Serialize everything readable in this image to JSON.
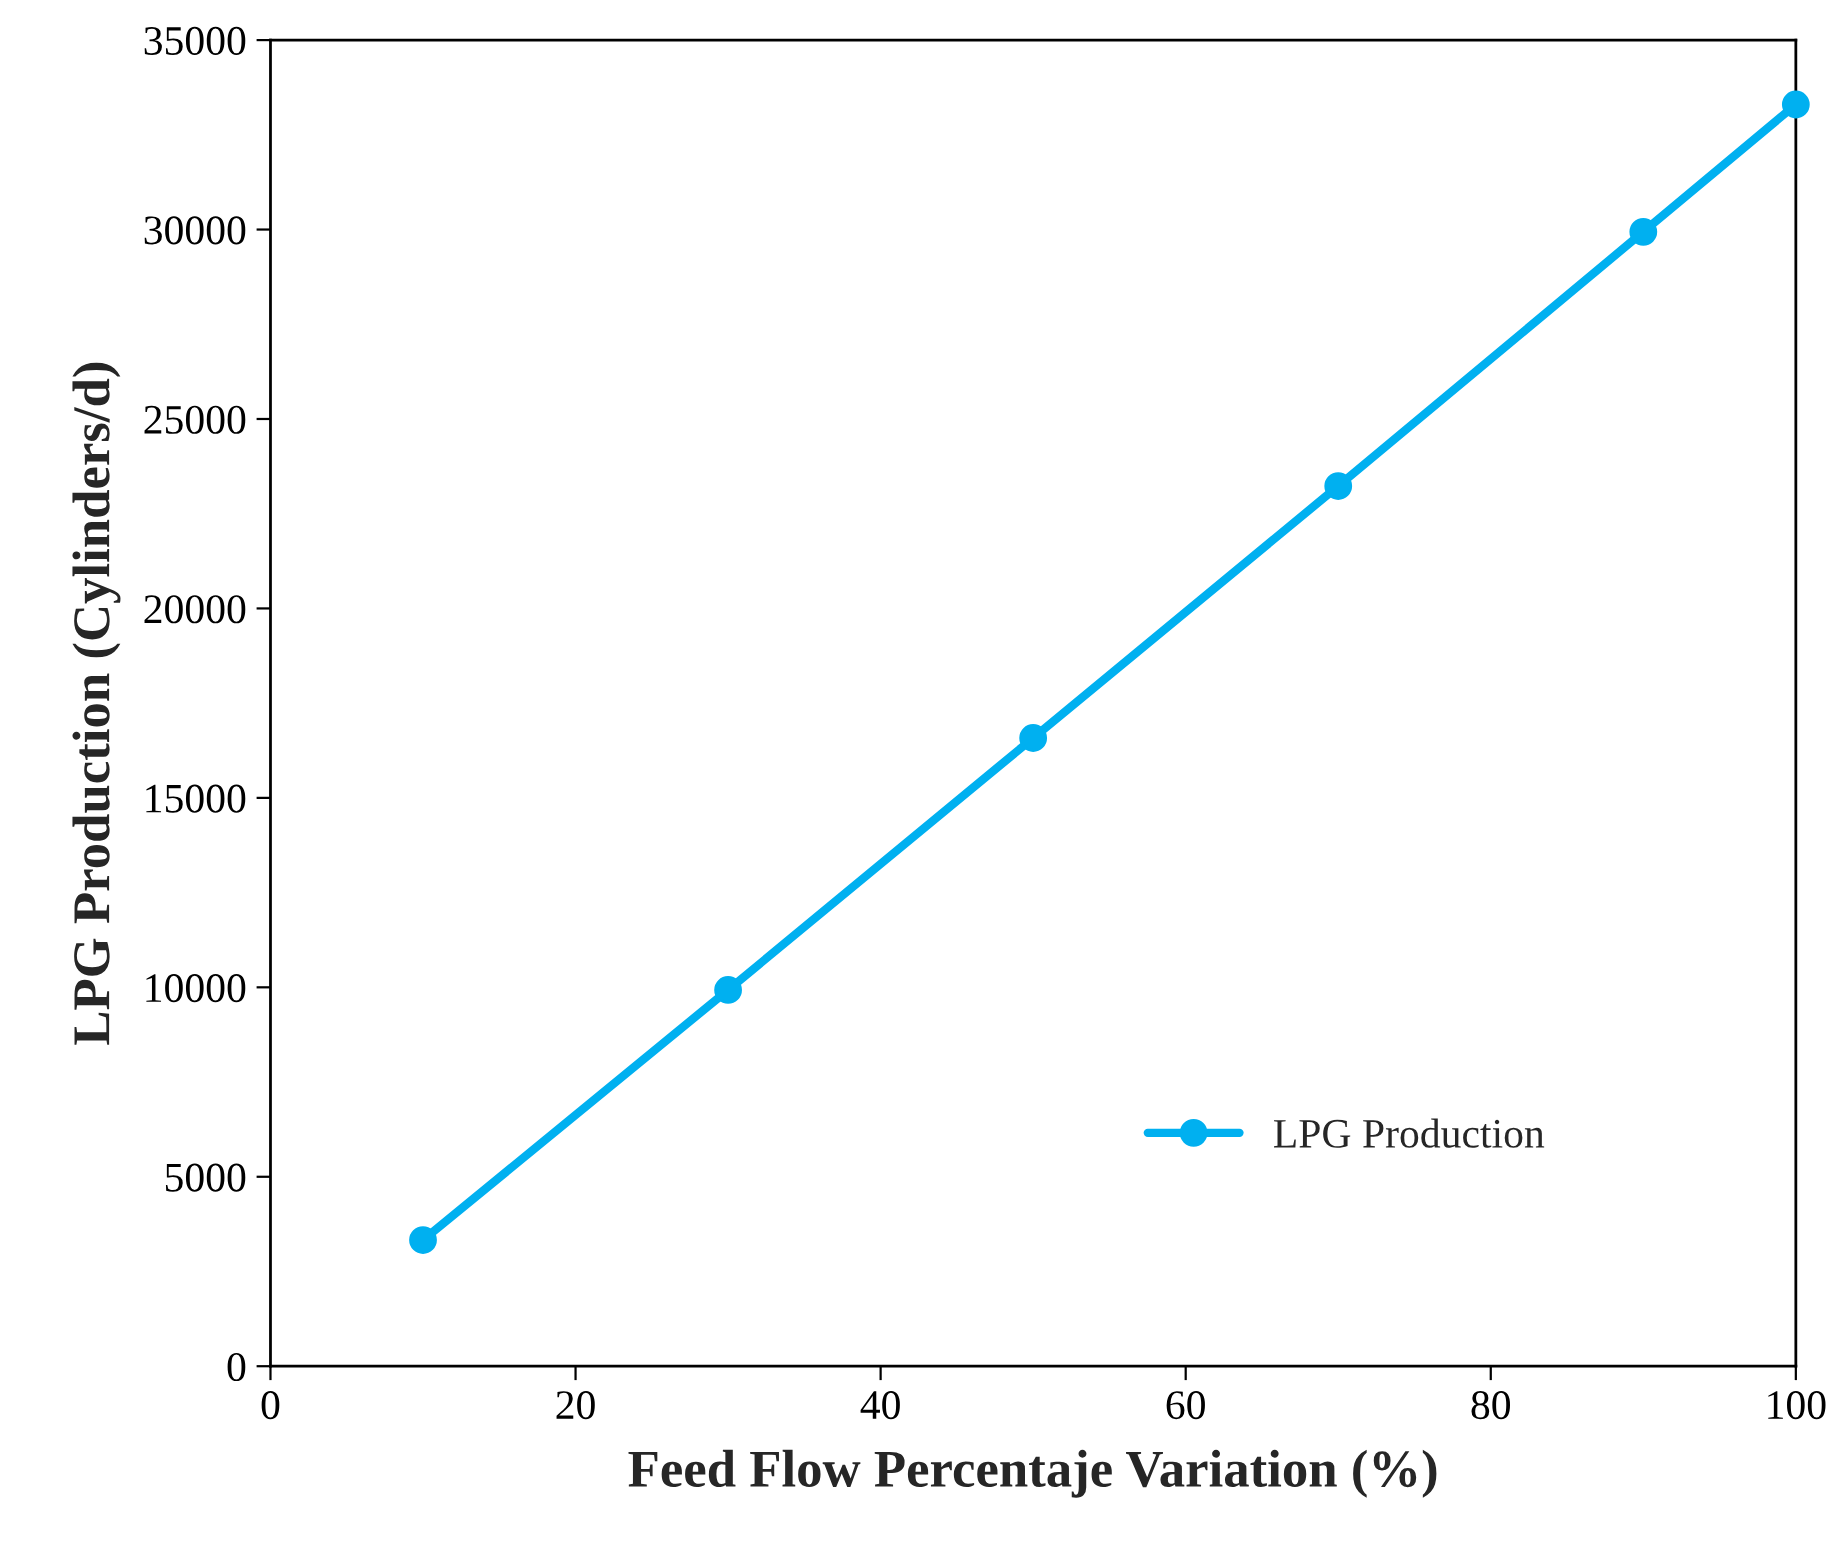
{
  "chart_data": {
    "type": "line",
    "xlabel": "Feed Flow Percentaje Variation (%)",
    "ylabel": "LPG Production (Cylinders/d)",
    "x": [
      10,
      30,
      50,
      70,
      90,
      100
    ],
    "series": [
      {
        "name": "LPG Production",
        "color": "#00b0f0",
        "values": [
          3330,
          9930,
          16580,
          23230,
          29940,
          33300
        ]
      }
    ],
    "xlim": [
      0,
      100
    ],
    "xticks": [
      0,
      20,
      40,
      60,
      80,
      100
    ],
    "ylim": [
      0,
      35000
    ],
    "yticks": [
      0,
      5000,
      10000,
      15000,
      20000,
      25000,
      30000,
      35000
    ],
    "grid": false,
    "legend": "bottom right",
    "marker": "circle",
    "line_style": "solid"
  }
}
